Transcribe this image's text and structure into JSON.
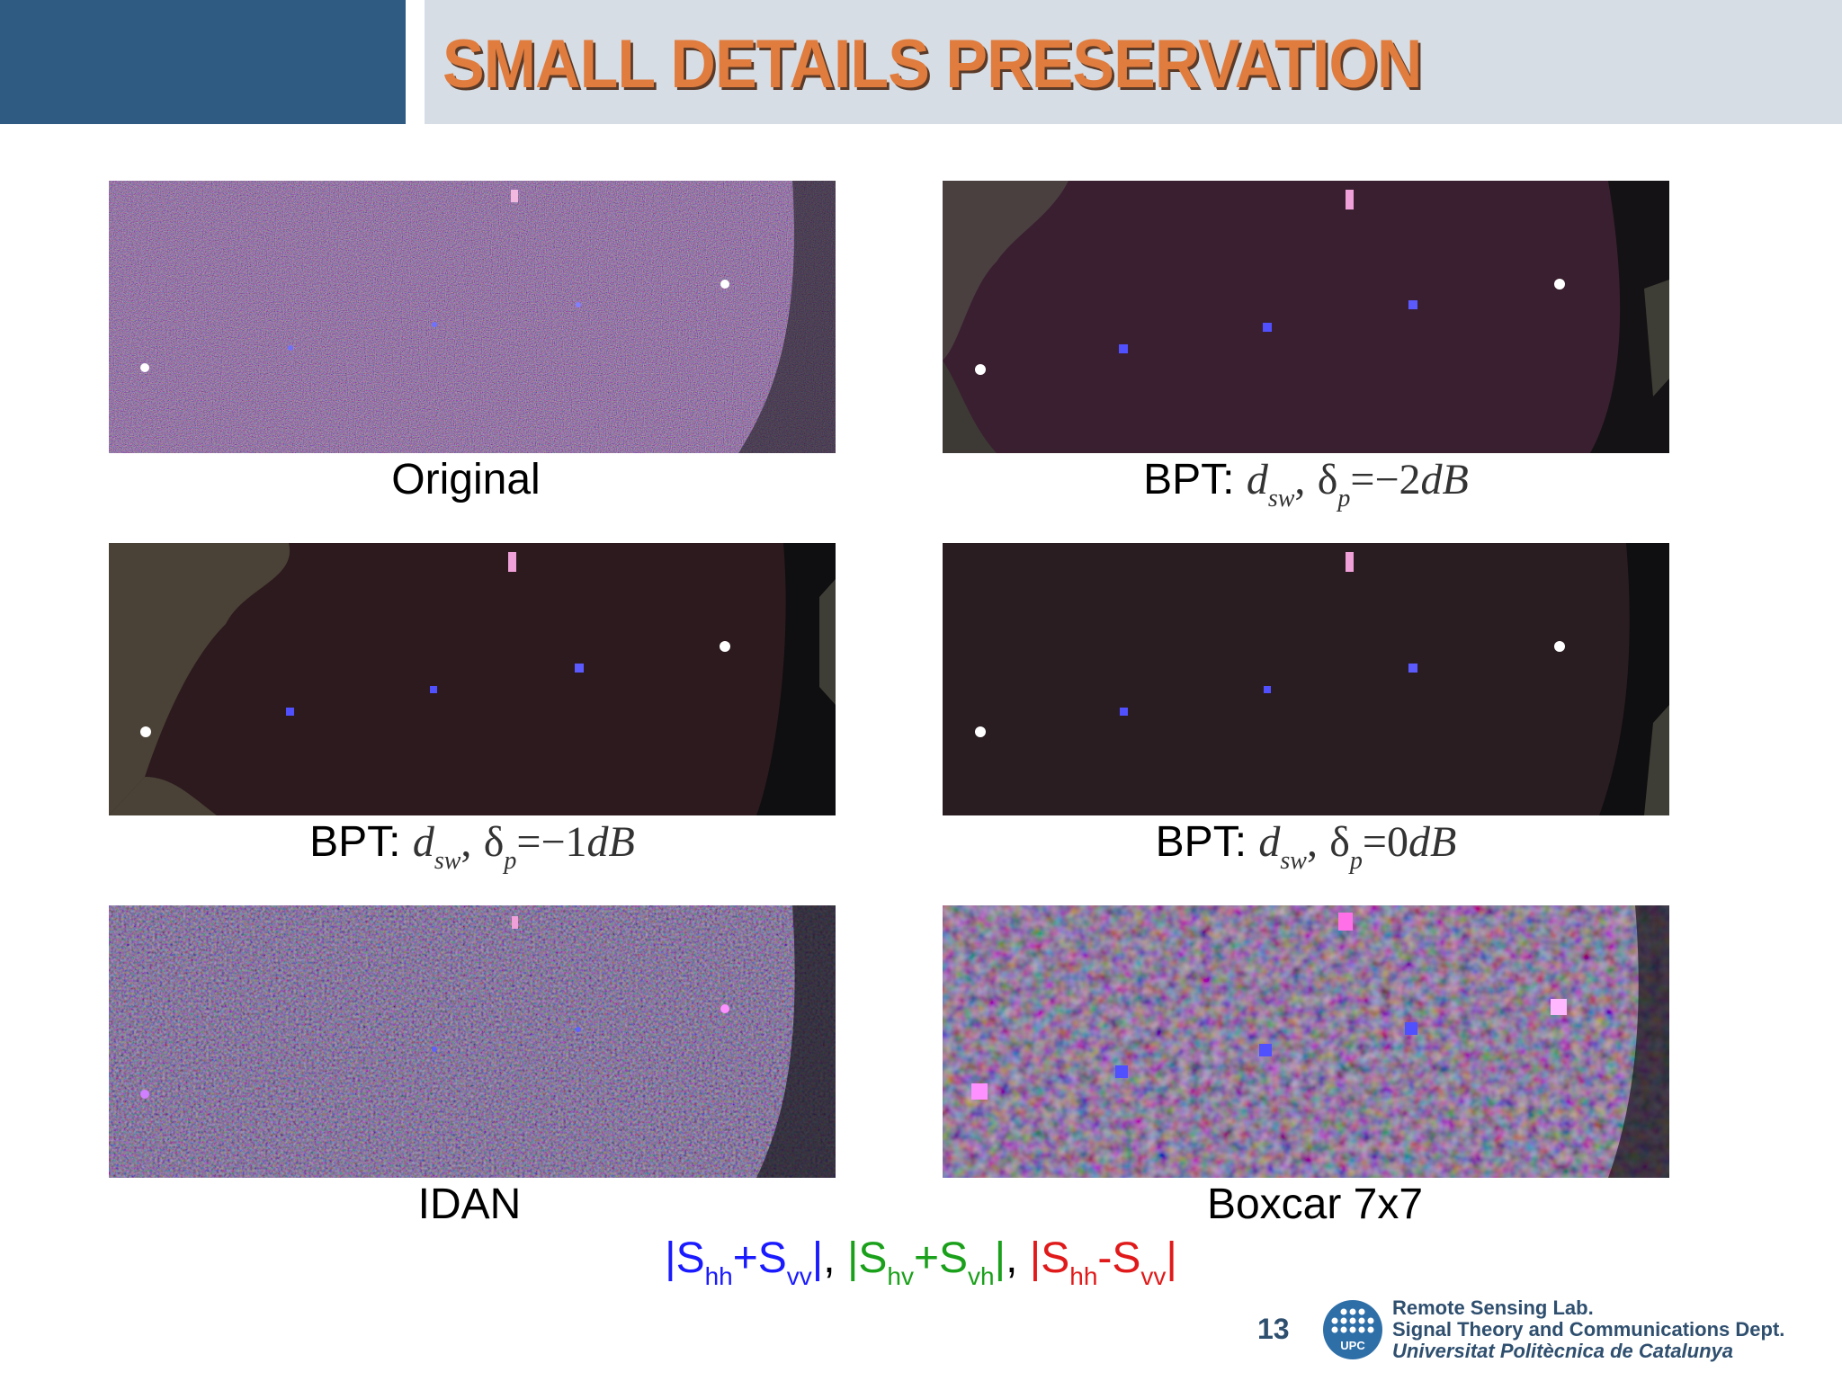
{
  "slide": {
    "title": "SMALL DETAILS PRESERVATION",
    "page_number": "13"
  },
  "panels": [
    {
      "id": "original",
      "caption": "Original"
    },
    {
      "id": "bpt-2",
      "caption_prefix": "BPT:",
      "caption_math": "d",
      "caption_sub1": "sw",
      "caption_sep": ",",
      "caption_delta": "δ",
      "caption_sub2": "p",
      "caption_value": "=−2",
      "caption_unit": "dB"
    },
    {
      "id": "bpt-1",
      "caption_prefix": "BPT:",
      "caption_math": "d",
      "caption_sub1": "sw",
      "caption_sep": ",",
      "caption_delta": "δ",
      "caption_sub2": "p",
      "caption_value": "=−1",
      "caption_unit": "dB"
    },
    {
      "id": "bpt-0",
      "caption_prefix": "BPT:",
      "caption_math": "d",
      "caption_sub1": "sw",
      "caption_sep": ",",
      "caption_delta": "δ",
      "caption_sub2": "p",
      "caption_value": "=0",
      "caption_unit": "dB"
    },
    {
      "id": "idan",
      "caption": "IDAN"
    },
    {
      "id": "boxcar",
      "caption": "Boxcar 7x7"
    }
  ],
  "legend": {
    "blue": {
      "open": "|S",
      "sub1": "hh",
      "plus": "+S",
      "sub2": "vv",
      "close": "|"
    },
    "sep1": ",",
    "green": {
      "open": "|S",
      "sub1": "hv",
      "plus": "+S",
      "sub2": "vh",
      "close": "|"
    },
    "sep2": ",",
    "red": {
      "open": "|S",
      "sub1": "hh",
      "minus": "-S",
      "sub2": "vv",
      "close": "|"
    },
    "colors": {
      "blue": "#1a1aff",
      "green": "#1aa01a",
      "red": "#e01a1a"
    }
  },
  "footer": {
    "logo_text": "UPC",
    "line1": "Remote Sensing Lab.",
    "line2": "Signal Theory and Communications Dept.",
    "line3": "Universitat Politècnica de Catalunya"
  }
}
